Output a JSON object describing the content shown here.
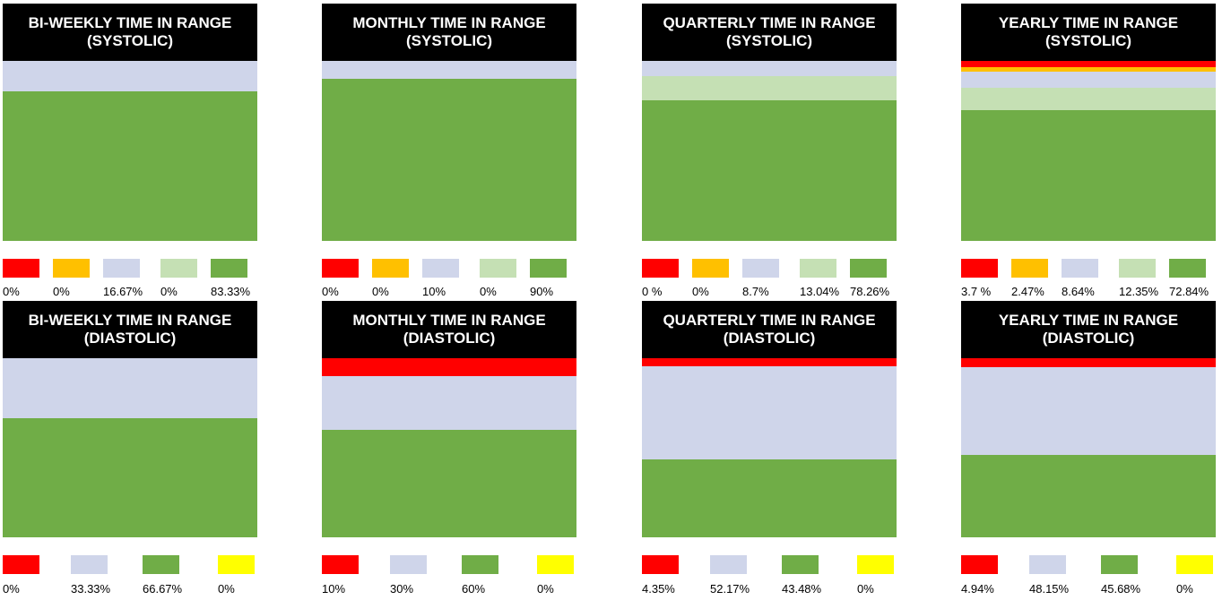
{
  "palette": {
    "red": "#FF0000",
    "orange": "#FFC000",
    "lavender": "#CFD5EA",
    "light_green": "#C5E0B4",
    "green": "#70AD47",
    "yellow": "#FFFF00"
  },
  "chart_data": [
    {
      "type": "stacked-bar-100",
      "title": "BI-WEEKLY TIME IN RANGE (SYSTOLIC)",
      "series": [
        {
          "color": "red",
          "value": 0,
          "label": "0%"
        },
        {
          "color": "orange",
          "value": 0,
          "label": "0%"
        },
        {
          "color": "lavender",
          "value": 16.67,
          "label": "16.67%"
        },
        {
          "color": "light_green",
          "value": 0,
          "label": "0%"
        },
        {
          "color": "green",
          "value": 83.33,
          "label": "83.33%"
        }
      ]
    },
    {
      "type": "stacked-bar-100",
      "title": "MONTHLY TIME IN RANGE (SYSTOLIC)",
      "series": [
        {
          "color": "red",
          "value": 0,
          "label": "0%"
        },
        {
          "color": "orange",
          "value": 0,
          "label": "0%"
        },
        {
          "color": "lavender",
          "value": 10,
          "label": "10%"
        },
        {
          "color": "light_green",
          "value": 0,
          "label": "0%"
        },
        {
          "color": "green",
          "value": 90,
          "label": "90%"
        }
      ]
    },
    {
      "type": "stacked-bar-100",
      "title": "QUARTERLY TIME IN RANGE (SYSTOLIC)",
      "series": [
        {
          "color": "red",
          "value": 0,
          "label": "0 %"
        },
        {
          "color": "orange",
          "value": 0,
          "label": "0%"
        },
        {
          "color": "lavender",
          "value": 8.7,
          "label": "8.7%"
        },
        {
          "color": "light_green",
          "value": 13.04,
          "label": "13.04%"
        },
        {
          "color": "green",
          "value": 78.26,
          "label": "78.26%"
        }
      ]
    },
    {
      "type": "stacked-bar-100",
      "title": "YEARLY TIME IN RANGE (SYSTOLIC)",
      "series": [
        {
          "color": "red",
          "value": 3.7,
          "label": "3.7 %"
        },
        {
          "color": "orange",
          "value": 2.47,
          "label": "2.47%"
        },
        {
          "color": "lavender",
          "value": 8.64,
          "label": "8.64%"
        },
        {
          "color": "light_green",
          "value": 12.35,
          "label": "12.35%"
        },
        {
          "color": "green",
          "value": 72.84,
          "label": "72.84%"
        }
      ]
    },
    {
      "type": "stacked-bar-100",
      "title": "BI-WEEKLY TIME IN RANGE (DIASTOLIC)",
      "series": [
        {
          "color": "red",
          "value": 0,
          "label": "0%"
        },
        {
          "color": "lavender",
          "value": 33.33,
          "label": "33.33%"
        },
        {
          "color": "green",
          "value": 66.67,
          "label": "66.67%"
        },
        {
          "color": "yellow",
          "value": 0,
          "label": "0%"
        }
      ]
    },
    {
      "type": "stacked-bar-100",
      "title": "MONTHLY TIME IN RANGE (DIASTOLIC)",
      "series": [
        {
          "color": "red",
          "value": 10,
          "label": "10%"
        },
        {
          "color": "lavender",
          "value": 30,
          "label": "30%"
        },
        {
          "color": "green",
          "value": 60,
          "label": "60%"
        },
        {
          "color": "yellow",
          "value": 0,
          "label": "0%"
        }
      ]
    },
    {
      "type": "stacked-bar-100",
      "title": "QUARTERLY TIME IN RANGE (DIASTOLIC)",
      "series": [
        {
          "color": "red",
          "value": 4.35,
          "label": "4.35%"
        },
        {
          "color": "lavender",
          "value": 52.17,
          "label": "52.17%"
        },
        {
          "color": "green",
          "value": 43.48,
          "label": "43.48%"
        },
        {
          "color": "yellow",
          "value": 0,
          "label": "0%"
        }
      ]
    },
    {
      "type": "stacked-bar-100",
      "title": "YEARLY TIME IN RANGE (DIASTOLIC)",
      "series": [
        {
          "color": "red",
          "value": 4.94,
          "label": "4.94%"
        },
        {
          "color": "lavender",
          "value": 48.15,
          "label": "48.15%"
        },
        {
          "color": "green",
          "value": 45.68,
          "label": "45.68%"
        },
        {
          "color": "yellow",
          "value": 0,
          "label": "0%"
        }
      ]
    }
  ]
}
